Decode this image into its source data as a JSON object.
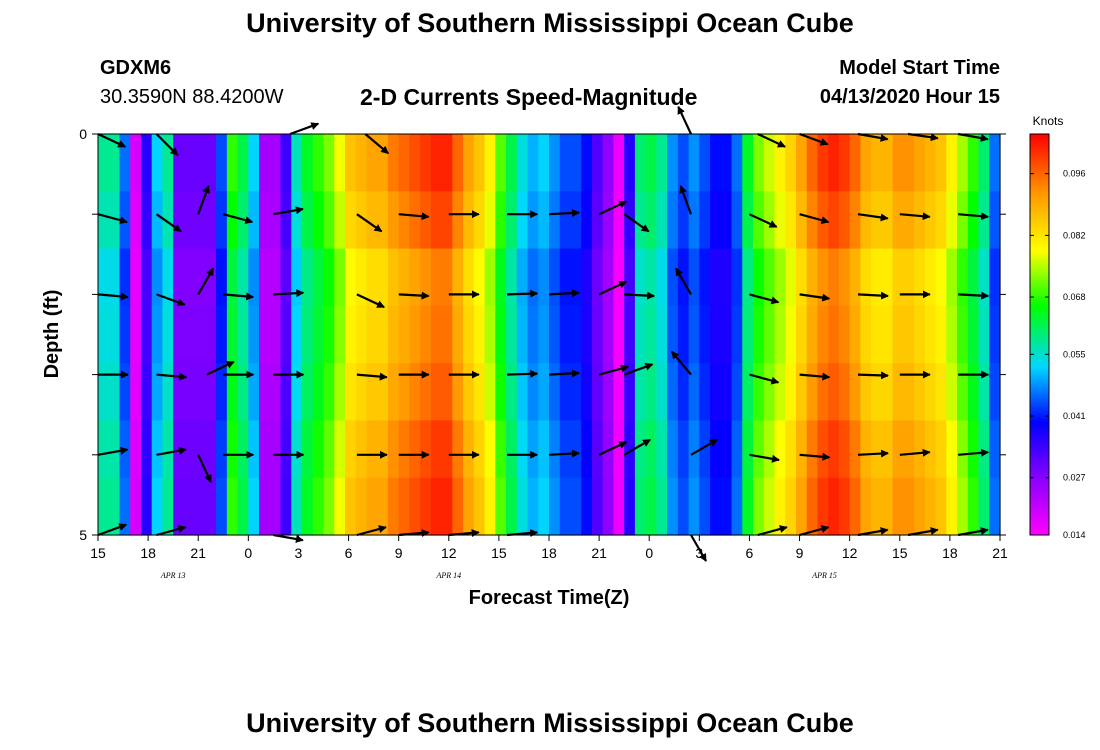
{
  "header": {
    "title": "University of Southern Mississippi Ocean Cube",
    "station_id": "GDXM6",
    "station_coords": "30.3590N 88.4200W",
    "model_start_label": "Model Start Time",
    "model_start_value": "04/13/2020 Hour 15"
  },
  "footer": {
    "title": "University of Southern Mississippi Ocean Cube"
  },
  "chart_data": {
    "type": "heatmap",
    "title": "2-D Currents Speed-Magnitude",
    "xlabel": "Forecast Time(Z)",
    "ylabel": "Depth (ft)",
    "xlim": [
      0,
      54
    ],
    "ylim": [
      0,
      5
    ],
    "x_ticks": [
      {
        "t": 0,
        "label": "15"
      },
      {
        "t": 3,
        "label": "18"
      },
      {
        "t": 6,
        "label": "21"
      },
      {
        "t": 9,
        "label": "0"
      },
      {
        "t": 12,
        "label": "3"
      },
      {
        "t": 15,
        "label": "6"
      },
      {
        "t": 18,
        "label": "9"
      },
      {
        "t": 21,
        "label": "12"
      },
      {
        "t": 24,
        "label": "15"
      },
      {
        "t": 27,
        "label": "18"
      },
      {
        "t": 30,
        "label": "21"
      },
      {
        "t": 33,
        "label": "0"
      },
      {
        "t": 36,
        "label": "3"
      },
      {
        "t": 39,
        "label": "6"
      },
      {
        "t": 42,
        "label": "9"
      },
      {
        "t": 45,
        "label": "12"
      },
      {
        "t": 48,
        "label": "15"
      },
      {
        "t": 51,
        "label": "18"
      },
      {
        "t": 54,
        "label": "21"
      }
    ],
    "y_ticks": [
      {
        "d": 0,
        "label": "0"
      },
      {
        "d": 5,
        "label": "5"
      }
    ],
    "date_labels": [
      {
        "t": 4.5,
        "label": "APR 13"
      },
      {
        "t": 21,
        "label": "APR 14"
      },
      {
        "t": 43.5,
        "label": "APR 15"
      }
    ],
    "colorbar": {
      "unit": "Knots",
      "min": 0.014,
      "max": 0.105,
      "ticks": [
        "0.014",
        "0.027",
        "0.041",
        "0.055",
        "0.068",
        "0.082",
        "0.096"
      ]
    },
    "speed_columns": [
      0.058,
      0.058,
      0.046,
      0.018,
      0.036,
      0.052,
      0.058,
      0.03,
      0.03,
      0.03,
      0.03,
      0.044,
      0.068,
      0.062,
      0.052,
      0.024,
      0.024,
      0.034,
      0.056,
      0.064,
      0.068,
      0.072,
      0.078,
      0.086,
      0.088,
      0.09,
      0.09,
      0.094,
      0.096,
      0.098,
      0.1,
      0.102,
      0.102,
      0.096,
      0.09,
      0.086,
      0.08,
      0.07,
      0.062,
      0.054,
      0.05,
      0.052,
      0.048,
      0.044,
      0.044,
      0.04,
      0.032,
      0.026,
      0.016,
      0.036,
      0.06,
      0.062,
      0.058,
      0.048,
      0.044,
      0.048,
      0.044,
      0.04,
      0.04,
      0.046,
      0.064,
      0.072,
      0.076,
      0.08,
      0.084,
      0.09,
      0.096,
      0.1,
      0.102,
      0.1,
      0.096,
      0.09,
      0.088,
      0.088,
      0.092,
      0.092,
      0.09,
      0.088,
      0.086,
      0.08,
      0.074,
      0.068,
      0.06,
      0.046
    ],
    "speed_row_factors": [
      1.0,
      0.97,
      0.92,
      0.93,
      0.95,
      0.98,
      1.0
    ],
    "vectors": [
      {
        "t": 0.0,
        "d": 0,
        "angle": 25
      },
      {
        "t": 3.5,
        "d": 0,
        "angle": 45
      },
      {
        "t": 11.5,
        "d": 0,
        "angle": -20
      },
      {
        "t": 16.0,
        "d": 0,
        "angle": 40
      },
      {
        "t": 35.5,
        "d": 0,
        "angle": -115
      },
      {
        "t": 39.5,
        "d": 0,
        "angle": 25
      },
      {
        "t": 42.0,
        "d": 0,
        "angle": 20
      },
      {
        "t": 45.5,
        "d": 0,
        "angle": 10
      },
      {
        "t": 48.5,
        "d": 0,
        "angle": 8
      },
      {
        "t": 51.5,
        "d": 0,
        "angle": 10
      },
      {
        "t": 0.0,
        "d": 1,
        "angle": 15
      },
      {
        "t": 3.5,
        "d": 1,
        "angle": 35
      },
      {
        "t": 6.0,
        "d": 1,
        "angle": -70
      },
      {
        "t": 7.5,
        "d": 1,
        "angle": 15
      },
      {
        "t": 10.5,
        "d": 1,
        "angle": -10
      },
      {
        "t": 15.5,
        "d": 1,
        "angle": 35
      },
      {
        "t": 18.0,
        "d": 1,
        "angle": 5
      },
      {
        "t": 21.0,
        "d": 1,
        "angle": 0
      },
      {
        "t": 24.5,
        "d": 1,
        "angle": 0
      },
      {
        "t": 27.0,
        "d": 1,
        "angle": -3
      },
      {
        "t": 30.0,
        "d": 1,
        "angle": -25
      },
      {
        "t": 31.5,
        "d": 1,
        "angle": 35
      },
      {
        "t": 35.5,
        "d": 1,
        "angle": -110
      },
      {
        "t": 39.0,
        "d": 1,
        "angle": 25
      },
      {
        "t": 42.0,
        "d": 1,
        "angle": 15
      },
      {
        "t": 45.5,
        "d": 1,
        "angle": 8
      },
      {
        "t": 48.0,
        "d": 1,
        "angle": 5
      },
      {
        "t": 51.5,
        "d": 1,
        "angle": 5
      },
      {
        "t": 0.0,
        "d": 2,
        "angle": 5
      },
      {
        "t": 3.5,
        "d": 2,
        "angle": 20
      },
      {
        "t": 6.0,
        "d": 2,
        "angle": -60
      },
      {
        "t": 7.5,
        "d": 2,
        "angle": 5
      },
      {
        "t": 10.5,
        "d": 2,
        "angle": -3
      },
      {
        "t": 15.5,
        "d": 2,
        "angle": 25
      },
      {
        "t": 18.0,
        "d": 2,
        "angle": 3
      },
      {
        "t": 21.0,
        "d": 2,
        "angle": 0
      },
      {
        "t": 24.5,
        "d": 2,
        "angle": -2
      },
      {
        "t": 27.0,
        "d": 2,
        "angle": -3
      },
      {
        "t": 30.0,
        "d": 2,
        "angle": -25
      },
      {
        "t": 31.5,
        "d": 2,
        "angle": 3
      },
      {
        "t": 35.5,
        "d": 2,
        "angle": -120
      },
      {
        "t": 39.0,
        "d": 2,
        "angle": 15
      },
      {
        "t": 42.0,
        "d": 2,
        "angle": 8
      },
      {
        "t": 45.5,
        "d": 2,
        "angle": 3
      },
      {
        "t": 48.0,
        "d": 2,
        "angle": 0
      },
      {
        "t": 51.5,
        "d": 2,
        "angle": 3
      },
      {
        "t": 0.0,
        "d": 3,
        "angle": 0
      },
      {
        "t": 3.5,
        "d": 3,
        "angle": 5
      },
      {
        "t": 6.5,
        "d": 3,
        "angle": -25
      },
      {
        "t": 7.5,
        "d": 3,
        "angle": 0
      },
      {
        "t": 10.5,
        "d": 3,
        "angle": 0
      },
      {
        "t": 15.5,
        "d": 3,
        "angle": 5
      },
      {
        "t": 18.0,
        "d": 3,
        "angle": 0
      },
      {
        "t": 21.0,
        "d": 3,
        "angle": 0
      },
      {
        "t": 24.5,
        "d": 3,
        "angle": -2
      },
      {
        "t": 27.0,
        "d": 3,
        "angle": -3
      },
      {
        "t": 30.0,
        "d": 3,
        "angle": -15
      },
      {
        "t": 31.5,
        "d": 3,
        "angle": -20
      },
      {
        "t": 35.5,
        "d": 3,
        "angle": -130
      },
      {
        "t": 39.0,
        "d": 3,
        "angle": 15
      },
      {
        "t": 42.0,
        "d": 3,
        "angle": 5
      },
      {
        "t": 45.5,
        "d": 3,
        "angle": 2
      },
      {
        "t": 48.0,
        "d": 3,
        "angle": 0
      },
      {
        "t": 51.5,
        "d": 3,
        "angle": 0
      },
      {
        "t": 0.0,
        "d": 4,
        "angle": -10
      },
      {
        "t": 3.5,
        "d": 4,
        "angle": -10
      },
      {
        "t": 6.0,
        "d": 4,
        "angle": 65
      },
      {
        "t": 7.5,
        "d": 4,
        "angle": 0
      },
      {
        "t": 10.5,
        "d": 4,
        "angle": 0
      },
      {
        "t": 15.5,
        "d": 4,
        "angle": 0
      },
      {
        "t": 18.0,
        "d": 4,
        "angle": 0
      },
      {
        "t": 21.0,
        "d": 4,
        "angle": 0
      },
      {
        "t": 24.5,
        "d": 4,
        "angle": 0
      },
      {
        "t": 27.0,
        "d": 4,
        "angle": -3
      },
      {
        "t": 30.0,
        "d": 4,
        "angle": -25
      },
      {
        "t": 31.5,
        "d": 4,
        "angle": -30
      },
      {
        "t": 35.5,
        "d": 4,
        "angle": -30
      },
      {
        "t": 39.0,
        "d": 4,
        "angle": 10
      },
      {
        "t": 42.0,
        "d": 4,
        "angle": 5
      },
      {
        "t": 45.5,
        "d": 4,
        "angle": -3
      },
      {
        "t": 48.0,
        "d": 4,
        "angle": -5
      },
      {
        "t": 51.5,
        "d": 4,
        "angle": -5
      },
      {
        "t": 0.0,
        "d": 5,
        "angle": -20
      },
      {
        "t": 3.5,
        "d": 5,
        "angle": -15
      },
      {
        "t": 10.5,
        "d": 5,
        "angle": 10
      },
      {
        "t": 15.5,
        "d": 5,
        "angle": -15
      },
      {
        "t": 18.0,
        "d": 5,
        "angle": -5
      },
      {
        "t": 21.0,
        "d": 5,
        "angle": -5
      },
      {
        "t": 24.5,
        "d": 5,
        "angle": -5
      },
      {
        "t": 35.5,
        "d": 5,
        "angle": 60
      },
      {
        "t": 39.5,
        "d": 5,
        "angle": -15
      },
      {
        "t": 42.0,
        "d": 5,
        "angle": -15
      },
      {
        "t": 45.5,
        "d": 5,
        "angle": -10
      },
      {
        "t": 48.5,
        "d": 5,
        "angle": -10
      },
      {
        "t": 51.5,
        "d": 5,
        "angle": -10
      }
    ]
  }
}
